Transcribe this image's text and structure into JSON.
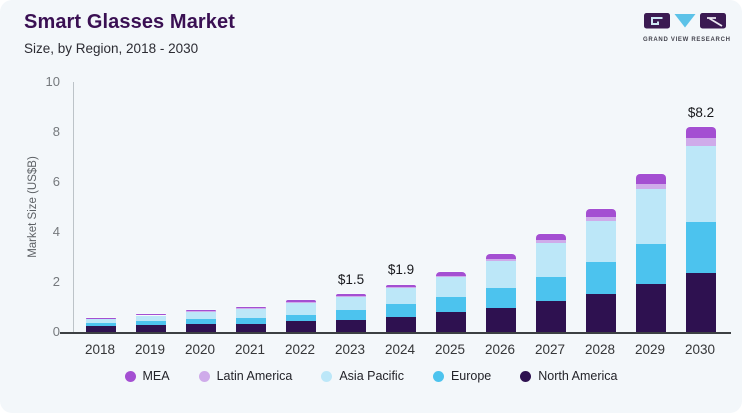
{
  "header": {
    "title": "Smart Glasses Market",
    "subtitle": "Size, by Region, 2018 - 2030",
    "title_color": "#3a1053"
  },
  "logo": {
    "text": "GRAND VIEW RESEARCH",
    "block_color": "#3b1a52",
    "triangle_color": "#5cc2e8"
  },
  "card_background": "#f3f7fa",
  "chart_data": {
    "type": "bar",
    "stacked": true,
    "title": "Smart Glasses Market",
    "subtitle": "Size, by Region, 2018 - 2030",
    "xlabel": "",
    "ylabel": "Market Size (US$B)",
    "ylim": [
      0,
      10
    ],
    "yticks": [
      0,
      2,
      4,
      6,
      8,
      10
    ],
    "grid": false,
    "legend_position": "bottom",
    "categories": [
      "2018",
      "2019",
      "2020",
      "2021",
      "2022",
      "2023",
      "2024",
      "2025",
      "2026",
      "2027",
      "2028",
      "2029",
      "2030"
    ],
    "series": [
      {
        "name": "North America",
        "color": "#2e1150",
        "values": [
          0.23,
          0.28,
          0.3,
          0.32,
          0.42,
          0.47,
          0.59,
          0.79,
          0.95,
          1.22,
          1.52,
          1.9,
          2.37
        ]
      },
      {
        "name": "Europe",
        "color": "#4cc3ee",
        "values": [
          0.14,
          0.17,
          0.23,
          0.25,
          0.27,
          0.4,
          0.54,
          0.6,
          0.8,
          0.97,
          1.26,
          1.61,
          2.02
        ]
      },
      {
        "name": "Asia Pacific",
        "color": "#bce7f8",
        "values": [
          0.15,
          0.21,
          0.28,
          0.36,
          0.46,
          0.52,
          0.62,
          0.8,
          1.08,
          1.38,
          1.64,
          2.2,
          3.06
        ]
      },
      {
        "name": "Latin America",
        "color": "#cfabea",
        "values": [
          0.01,
          0.015,
          0.02,
          0.03,
          0.04,
          0.05,
          0.06,
          0.06,
          0.09,
          0.11,
          0.18,
          0.21,
          0.3
        ]
      },
      {
        "name": "MEA",
        "color": "#a44fd2",
        "values": [
          0.02,
          0.025,
          0.04,
          0.05,
          0.06,
          0.06,
          0.09,
          0.15,
          0.18,
          0.22,
          0.3,
          0.38,
          0.45
        ]
      }
    ],
    "totals": [
      0.55,
      0.7,
      0.87,
      1.01,
      1.25,
      1.5,
      1.9,
      2.4,
      3.1,
      3.9,
      4.9,
      6.3,
      8.2
    ],
    "value_labels": {
      "2023": "$1.5",
      "2024": "$1.9",
      "2030": "$8.2"
    },
    "legend_order": [
      "MEA",
      "Latin America",
      "Asia Pacific",
      "Europe",
      "North America"
    ]
  }
}
